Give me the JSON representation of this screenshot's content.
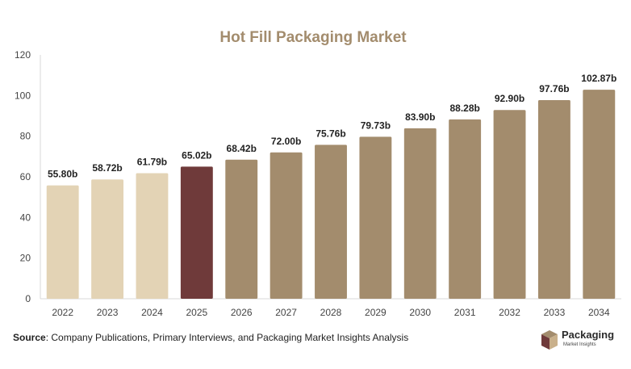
{
  "chart_data": {
    "type": "bar",
    "title": "Hot Fill Packaging Market",
    "categories": [
      "2022",
      "2023",
      "2024",
      "2025",
      "2026",
      "2027",
      "2028",
      "2029",
      "2030",
      "2031",
      "2032",
      "2033",
      "2034"
    ],
    "values": [
      55.8,
      58.72,
      61.79,
      65.02,
      68.42,
      72.0,
      75.76,
      79.73,
      83.9,
      88.28,
      92.9,
      97.76,
      102.87
    ],
    "data_labels": [
      "55.80b",
      "58.72b",
      "61.79b",
      "65.02b",
      "68.42b",
      "72.00b",
      "75.76b",
      "79.73b",
      "83.90b",
      "88.28b",
      "92.90b",
      "97.76b",
      "102.87b"
    ],
    "ylim": [
      0,
      120
    ],
    "yticks": [
      0,
      20,
      40,
      60,
      80,
      100,
      120
    ],
    "xlabel": "",
    "ylabel": "",
    "grid": false,
    "legend": "none",
    "bar_colors": {
      "historical": "#e3d3b5",
      "current": "#6f3a3a",
      "forecast": "#a38c6d"
    },
    "title_color": "#a38c6d"
  },
  "footer": {
    "source_label": "Source",
    "source_text": ": Company Publications, Primary Interviews, and Packaging Market Insights Analysis"
  },
  "logo": {
    "name": "Packaging",
    "sub": "Market Insights",
    "icon": "box-icon"
  }
}
